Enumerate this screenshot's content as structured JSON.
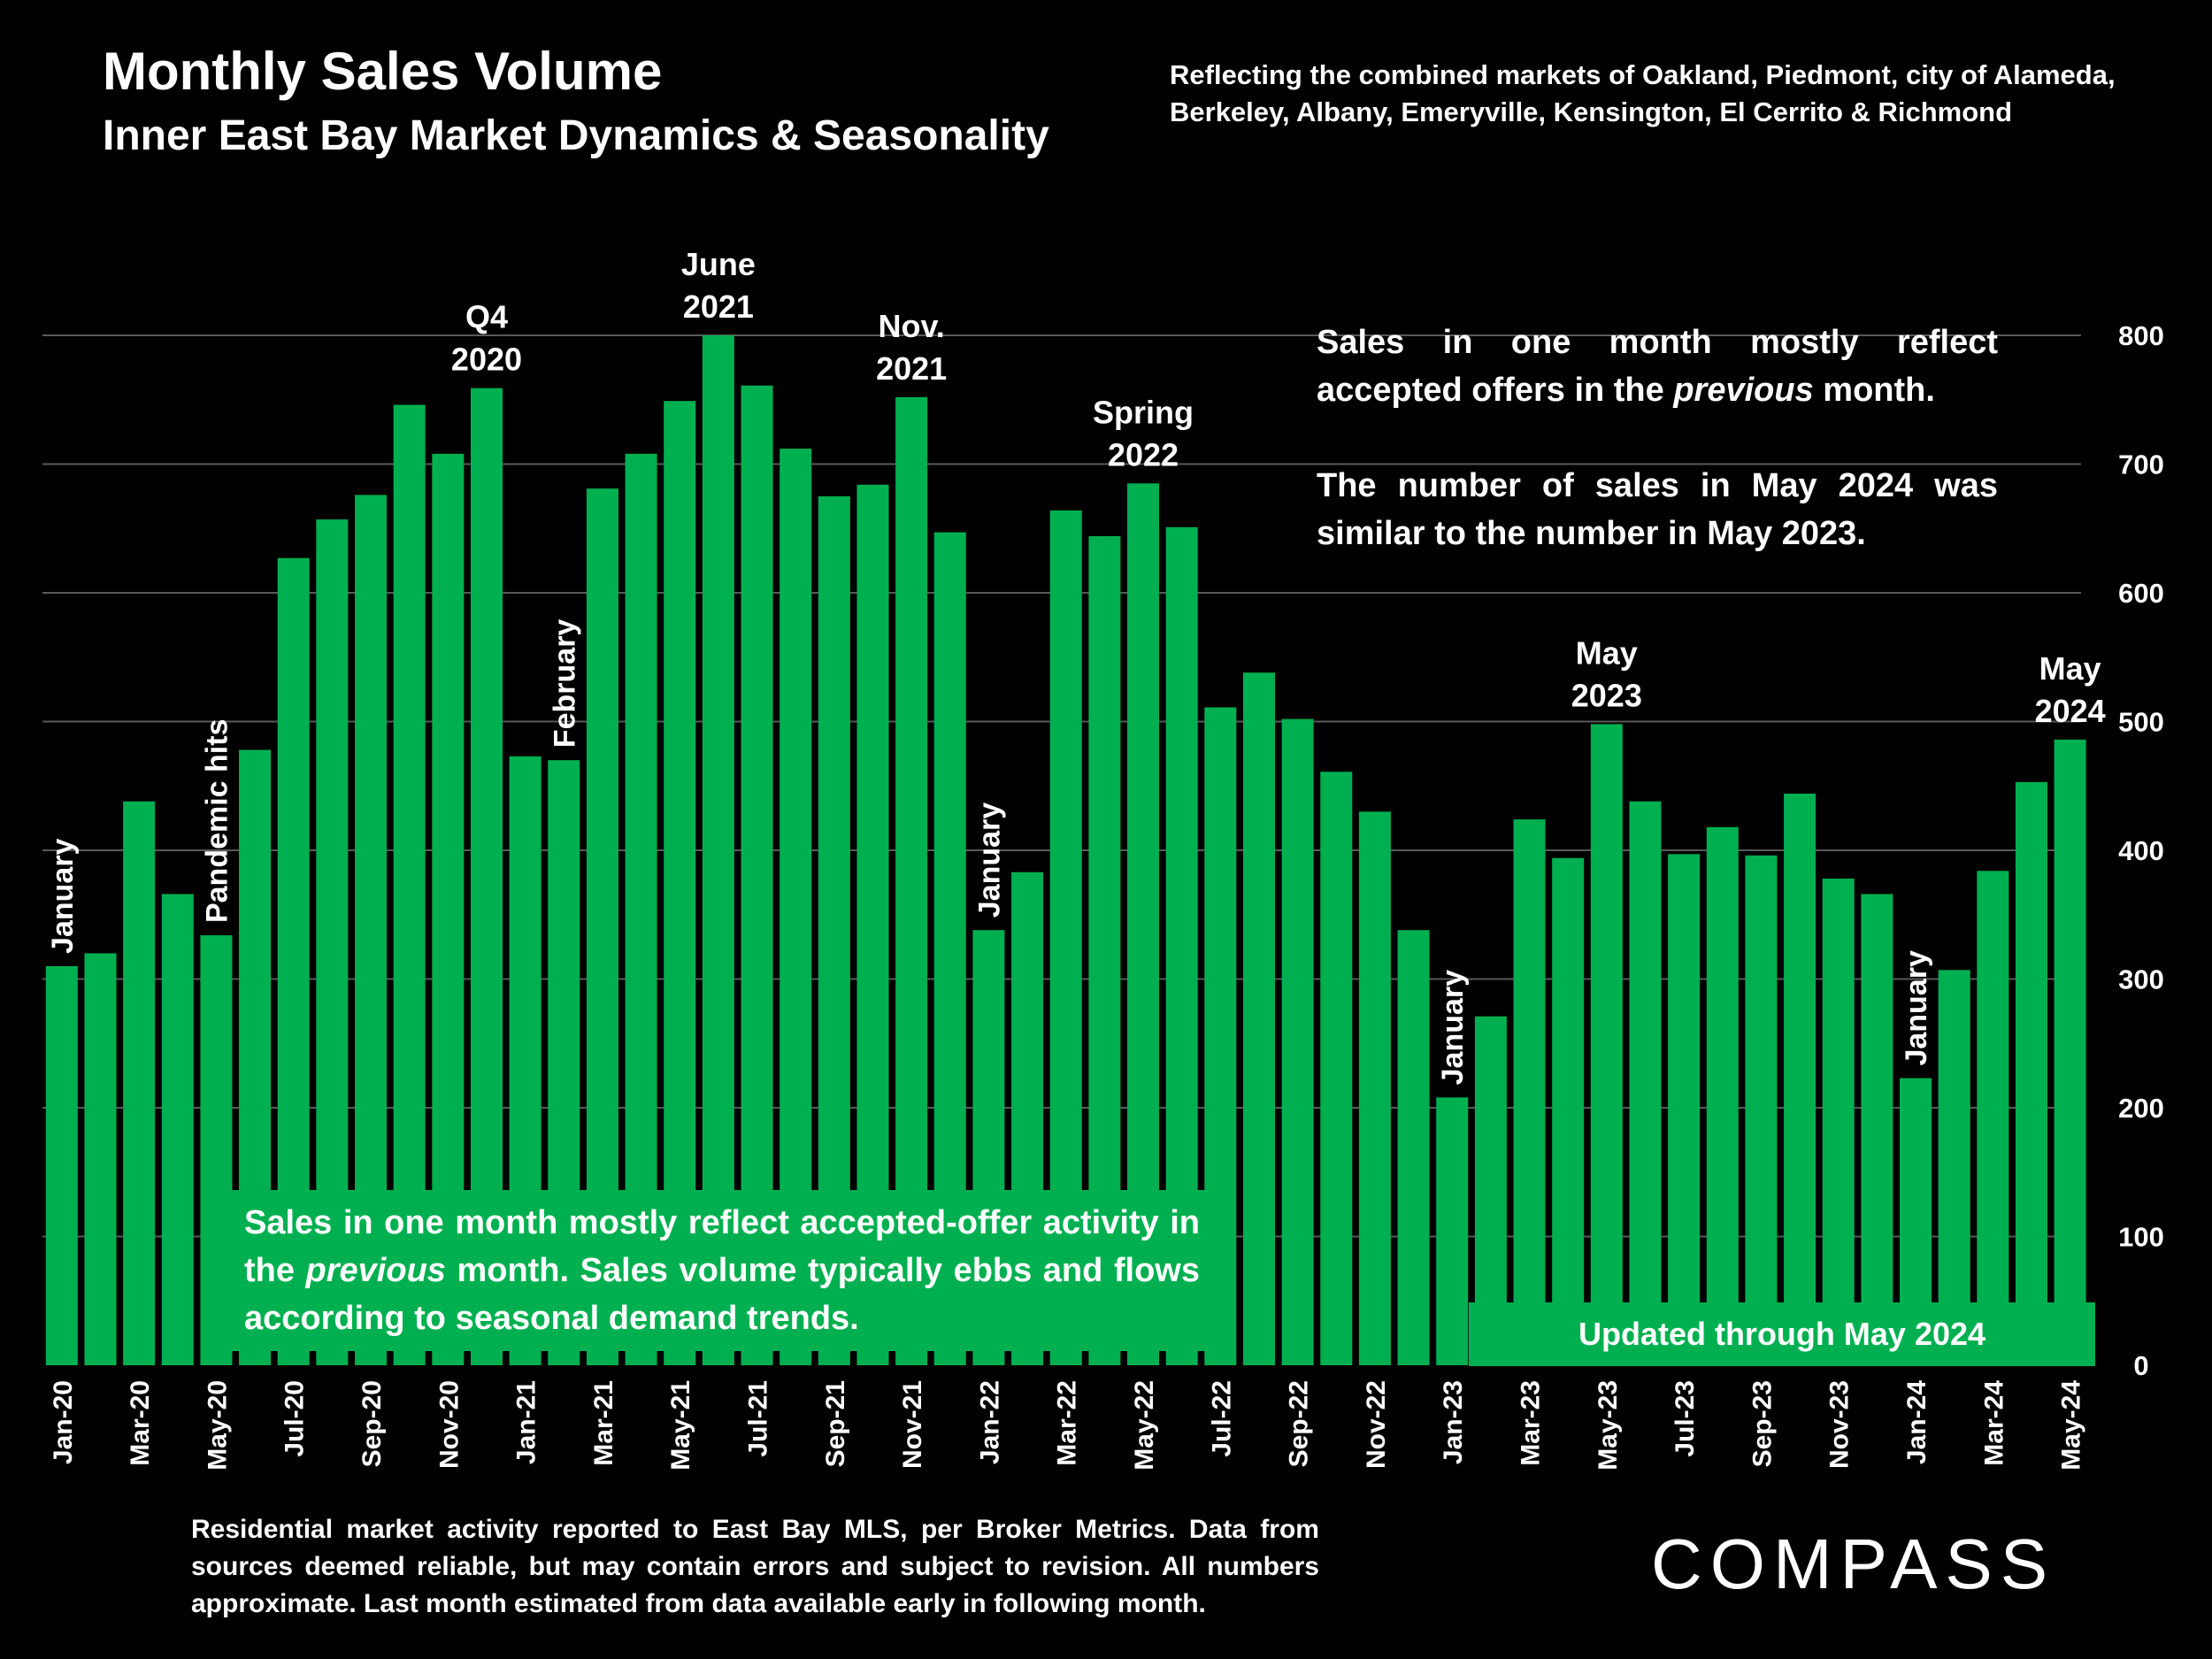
{
  "header": {
    "title": "Monthly Sales Volume",
    "subtitle": "Inner East Bay Market Dynamics & Seasonality",
    "region_note": "Reflecting the combined markets of Oakland, Piedmont, city of Alameda, Berkeley, Albany, Emeryville, Kensington, El Cerrito & Richmond"
  },
  "callout": {
    "p1_a": "Sales in one month mostly reflect accepted offers in the ",
    "p1_em": "previous",
    "p1_b": " month.",
    "p2": "The number of sales in May 2024 was similar to the number in May 2023."
  },
  "green_note": {
    "a": "Sales in one month mostly reflect accepted-offer activity in the ",
    "em": "previous",
    "b": " month. Sales volume typically ebbs and flows according to seasonal demand trends."
  },
  "updated_note": "Updated through May 2024",
  "footnote": "Residential market activity reported to East Bay MLS, per Broker Metrics. Data from sources deemed reliable, but may contain errors and subject to revision. All numbers approximate. Last month estimated from data available early in following month.",
  "logo": "COMPASS",
  "colors": {
    "bar": "#00b050",
    "background": "#000000",
    "grid": "#595959",
    "text": "#ffffff"
  },
  "chart_data": {
    "type": "bar",
    "title": "Monthly Sales Volume",
    "ylim": [
      0,
      800
    ],
    "y_ticks": [
      0,
      100,
      200,
      300,
      400,
      500,
      600,
      700,
      800
    ],
    "y_axis_side": "right",
    "grid": true,
    "categories": [
      "Jan-20",
      "Feb-20",
      "Mar-20",
      "Apr-20",
      "May-20",
      "Jun-20",
      "Jul-20",
      "Aug-20",
      "Sep-20",
      "Oct-20",
      "Nov-20",
      "Dec-20",
      "Jan-21",
      "Feb-21",
      "Mar-21",
      "Apr-21",
      "May-21",
      "Jun-21",
      "Jul-21",
      "Aug-21",
      "Sep-21",
      "Oct-21",
      "Nov-21",
      "Dec-21",
      "Jan-22",
      "Feb-22",
      "Mar-22",
      "Apr-22",
      "May-22",
      "Jun-22",
      "Jul-22",
      "Aug-22",
      "Sep-22",
      "Oct-22",
      "Nov-22",
      "Dec-22",
      "Jan-23",
      "Feb-23",
      "Mar-23",
      "Apr-23",
      "May-23",
      "Jun-23",
      "Jul-23",
      "Aug-23",
      "Sep-23",
      "Oct-23",
      "Nov-23",
      "Dec-23",
      "Jan-24",
      "Feb-24",
      "Mar-24",
      "Apr-24",
      "May-24"
    ],
    "x_tick_labels": [
      "Jan-20",
      "",
      "Mar-20",
      "",
      "May-20",
      "",
      "Jul-20",
      "",
      "Sep-20",
      "",
      "Nov-20",
      "",
      "Jan-21",
      "",
      "Mar-21",
      "",
      "May-21",
      "",
      "Jul-21",
      "",
      "Sep-21",
      "",
      "Nov-21",
      "",
      "Jan-22",
      "",
      "Mar-22",
      "",
      "May-22",
      "",
      "Jul-22",
      "",
      "Sep-22",
      "",
      "Nov-22",
      "",
      "Jan-23",
      "",
      "Mar-23",
      "",
      "May-23",
      "",
      "Jul-23",
      "",
      "Sep-23",
      "",
      "Nov-23",
      "",
      "Jan-24",
      "",
      "Mar-24",
      "",
      "May-24"
    ],
    "values": [
      310,
      320,
      438,
      366,
      334,
      478,
      627,
      657,
      676,
      746,
      708,
      759,
      473,
      470,
      681,
      708,
      749,
      800,
      761,
      712,
      675,
      684,
      752,
      647,
      338,
      383,
      664,
      644,
      685,
      651,
      511,
      538,
      502,
      461,
      430,
      338,
      208,
      271,
      424,
      394,
      498,
      438,
      397,
      418,
      396,
      444,
      378,
      366,
      223,
      307,
      384,
      453,
      486
    ],
    "annotations": [
      {
        "index": 0,
        "text": [
          "January"
        ],
        "rotate": true
      },
      {
        "index": 4,
        "text": [
          "Pandemic hits"
        ],
        "rotate": true
      },
      {
        "index": 11,
        "text": [
          "Q4",
          "2020"
        ],
        "rotate": false
      },
      {
        "index": 13,
        "text": [
          "February"
        ],
        "rotate": true
      },
      {
        "index": 17,
        "text": [
          "June",
          "2021"
        ],
        "rotate": false
      },
      {
        "index": 22,
        "text": [
          "Nov.",
          "2021"
        ],
        "rotate": false
      },
      {
        "index": 24,
        "text": [
          "January"
        ],
        "rotate": true
      },
      {
        "index": 28,
        "text": [
          "Spring",
          "2022"
        ],
        "rotate": false
      },
      {
        "index": 36,
        "text": [
          "January"
        ],
        "rotate": true
      },
      {
        "index": 40,
        "text": [
          "May",
          "2023"
        ],
        "rotate": false
      },
      {
        "index": 48,
        "text": [
          "January"
        ],
        "rotate": true
      },
      {
        "index": 52,
        "text": [
          "May",
          "2024"
        ],
        "rotate": false
      }
    ]
  }
}
